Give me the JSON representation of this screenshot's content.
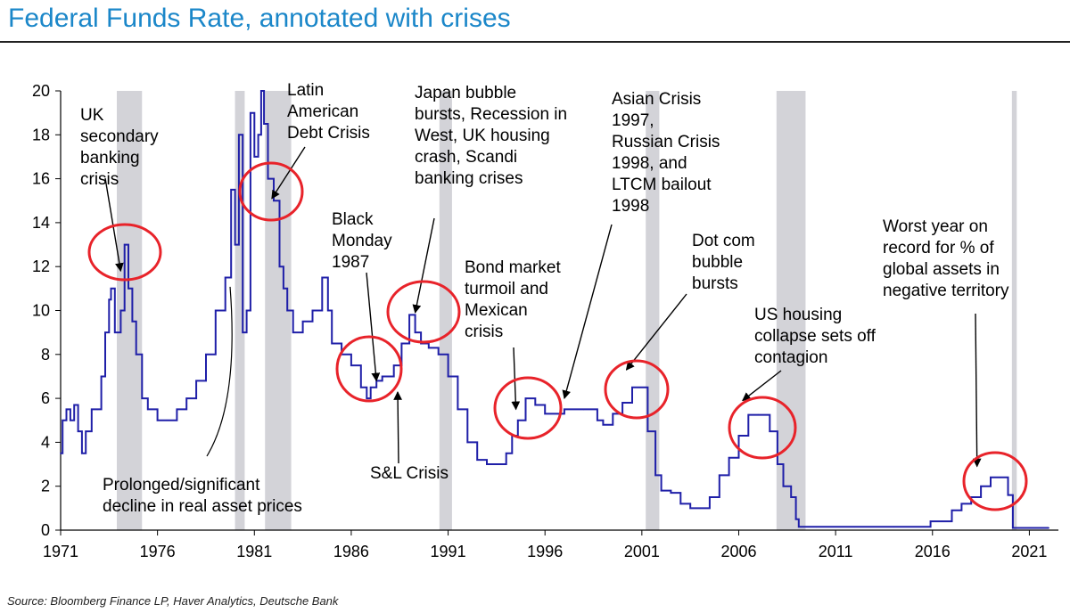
{
  "title": "Federal Funds Rate, annotated with crises",
  "source": "Source: Bloomberg Finance LP, Haver Analytics, Deutsche Bank",
  "colors": {
    "line": "#1f1fa8",
    "recession": "#d3d3d8",
    "circle": "#e8232a",
    "title": "#1b87c9"
  },
  "chart_data": {
    "type": "line",
    "title": "Federal Funds Rate, annotated with crises",
    "xlabel": "",
    "ylabel": "",
    "xlim": [
      1971,
      2022.5
    ],
    "ylim": [
      0,
      20
    ],
    "x_ticks": [
      1971,
      1976,
      1981,
      1986,
      1991,
      1996,
      2001,
      2006,
      2011,
      2016,
      2021
    ],
    "x_tick_labels": [
      "1971",
      "1976",
      "1981",
      "1986",
      "1991",
      "1996",
      "2001",
      "2006",
      "2011",
      "2016",
      "2021"
    ],
    "y_ticks": [
      0,
      2,
      4,
      6,
      8,
      10,
      12,
      14,
      16,
      18,
      20
    ],
    "y_tick_labels": [
      "0",
      "2",
      "4",
      "6",
      "8",
      "10",
      "12",
      "14",
      "16",
      "18",
      "20"
    ],
    "grid": false,
    "legend": "none",
    "recessions": [
      [
        1973.9,
        1975.2
      ],
      [
        1980.0,
        1980.5
      ],
      [
        1981.55,
        1982.9
      ],
      [
        1990.55,
        1991.2
      ],
      [
        2001.2,
        2001.9
      ],
      [
        2007.95,
        2009.45
      ],
      [
        2020.1,
        2020.35
      ]
    ],
    "series": [
      {
        "x": [
          1971.0,
          1971.1,
          1971.3,
          1971.5,
          1971.7,
          1971.9,
          1972.1,
          1972.3,
          1972.6,
          1972.9,
          1973.1,
          1973.3,
          1973.5,
          1973.6,
          1973.8,
          1974.1,
          1974.3,
          1974.5,
          1974.7,
          1974.9,
          1975.2,
          1975.5,
          1976.0,
          1976.5,
          1977.0,
          1977.5,
          1978.0,
          1978.5,
          1979.0,
          1979.5,
          1979.8,
          1980.0,
          1980.2,
          1980.4,
          1980.6,
          1980.8,
          1981.0,
          1981.2,
          1981.35,
          1981.5,
          1981.7,
          1982.0,
          1982.3,
          1982.5,
          1982.7,
          1983.0,
          1983.5,
          1984.0,
          1984.5,
          1984.8,
          1985.0,
          1985.5,
          1986.0,
          1986.5,
          1986.8,
          1987.0,
          1987.3,
          1987.6,
          1987.9,
          1988.2,
          1988.6,
          1989.0,
          1989.3,
          1989.6,
          1990.0,
          1990.5,
          1991.0,
          1991.5,
          1992.0,
          1992.5,
          1993.0,
          1993.5,
          1994.0,
          1994.3,
          1994.6,
          1995.0,
          1995.5,
          1996.0,
          1997.0,
          1998.0,
          1998.7,
          1999.0,
          1999.5,
          2000.0,
          2000.5,
          2000.9,
          2001.3,
          2001.7,
          2002.0,
          2002.5,
          2003.0,
          2003.5,
          2004.0,
          2004.5,
          2005.0,
          2005.5,
          2006.0,
          2006.5,
          2007.0,
          2007.6,
          2008.0,
          2008.3,
          2008.7,
          2008.95,
          2009.1,
          2010.0,
          2012.0,
          2014.0,
          2015.9,
          2016.5,
          2017.0,
          2017.5,
          2018.0,
          2018.5,
          2019.0,
          2019.5,
          2019.9,
          2020.15,
          2020.3,
          2021.0,
          2022.0
        ],
        "values": [
          3.5,
          5.0,
          5.5,
          5.0,
          5.7,
          4.5,
          3.5,
          4.5,
          5.5,
          5.5,
          7.0,
          9.0,
          10.5,
          11.0,
          9.0,
          10.0,
          13.0,
          11.0,
          9.5,
          8.0,
          6.0,
          5.5,
          5.0,
          5.0,
          5.5,
          6.0,
          6.8,
          8.0,
          10.0,
          11.5,
          15.5,
          13.0,
          18.0,
          9.0,
          10.0,
          19.0,
          17.0,
          18.0,
          20.0,
          18.5,
          16.0,
          15.0,
          12.0,
          11.0,
          10.0,
          9.0,
          9.5,
          10.0,
          11.5,
          10.0,
          8.5,
          8.0,
          7.5,
          6.5,
          6.0,
          6.5,
          6.8,
          7.0,
          7.0,
          7.5,
          8.5,
          9.8,
          9.0,
          8.5,
          8.3,
          8.0,
          7.0,
          5.5,
          4.0,
          3.2,
          3.0,
          3.0,
          3.5,
          4.3,
          5.0,
          6.0,
          5.7,
          5.3,
          5.5,
          5.5,
          5.0,
          4.8,
          5.3,
          5.8,
          6.5,
          6.5,
          4.5,
          2.5,
          1.8,
          1.7,
          1.2,
          1.0,
          1.0,
          1.5,
          2.5,
          3.3,
          4.3,
          5.25,
          5.25,
          4.5,
          3.0,
          2.0,
          1.5,
          0.5,
          0.15,
          0.15,
          0.15,
          0.15,
          0.4,
          0.4,
          0.9,
          1.2,
          1.5,
          2.0,
          2.4,
          2.4,
          1.6,
          0.1,
          0.1,
          0.1,
          0.1
        ]
      }
    ],
    "annotations": [
      {
        "lines": [
          "UK",
          "secondary",
          "banking",
          "crisis"
        ],
        "arrow_to": [
          1974.1,
          11.8
        ]
      },
      {
        "lines": [
          "Latin",
          "American",
          "Debt Crisis"
        ],
        "arrow_to": [
          1981.9,
          15.1
        ]
      },
      {
        "lines": [
          "Black",
          "Monday",
          "1987"
        ],
        "arrow_to": [
          1987.3,
          6.8
        ]
      },
      {
        "lines": [
          "Japan bubble",
          "bursts, Recession in",
          "West, UK housing",
          "crash, Scandi",
          "banking crises"
        ],
        "arrow_to": [
          1989.3,
          9.9
        ]
      },
      {
        "lines": [
          "Asian Crisis",
          "1997,",
          "Russian Crisis",
          "1998, and",
          "LTCM bailout",
          "1998"
        ],
        "arrow_to": [
          1997.0,
          6.0
        ]
      },
      {
        "lines": [
          "Bond market",
          "turmoil and",
          "Mexican",
          "crisis"
        ],
        "arrow_to": [
          1994.5,
          5.5
        ]
      },
      {
        "lines": [
          "Dot com",
          "bubble",
          "bursts"
        ],
        "arrow_to": [
          2000.2,
          7.3
        ]
      },
      {
        "lines": [
          "US housing",
          "collapse sets off",
          "contagion"
        ],
        "arrow_to": [
          2006.2,
          5.9
        ]
      },
      {
        "lines": [
          "Worst year on",
          "record for % of",
          "global assets in",
          "negative territory"
        ],
        "arrow_to": [
          2018.3,
          2.9
        ]
      },
      {
        "lines": [
          "S&L Crisis"
        ],
        "arrow_to": [
          1987.8,
          6.5
        ]
      },
      {
        "lines": [
          "Prolonged/significant",
          "decline in real asset prices"
        ],
        "arrow_to": [
          1979.7,
          12.5
        ]
      }
    ]
  }
}
